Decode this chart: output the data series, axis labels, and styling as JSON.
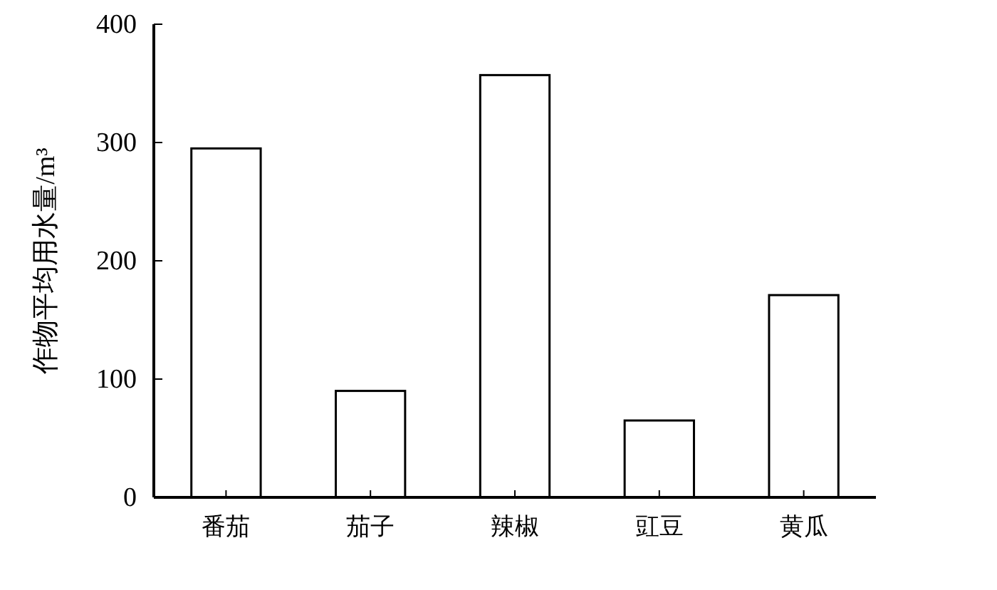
{
  "chart_data": {
    "type": "bar",
    "ylabel": "作物平均用水量/m³",
    "categories": [
      "番茄",
      "茄子",
      "辣椒",
      "豇豆",
      "黄瓜"
    ],
    "values": [
      295,
      90,
      357,
      65,
      171
    ],
    "color": "#ffffff",
    "ylim": [
      0,
      400
    ],
    "yticks": [
      0,
      100,
      200,
      300,
      400
    ],
    "grid": false
  }
}
